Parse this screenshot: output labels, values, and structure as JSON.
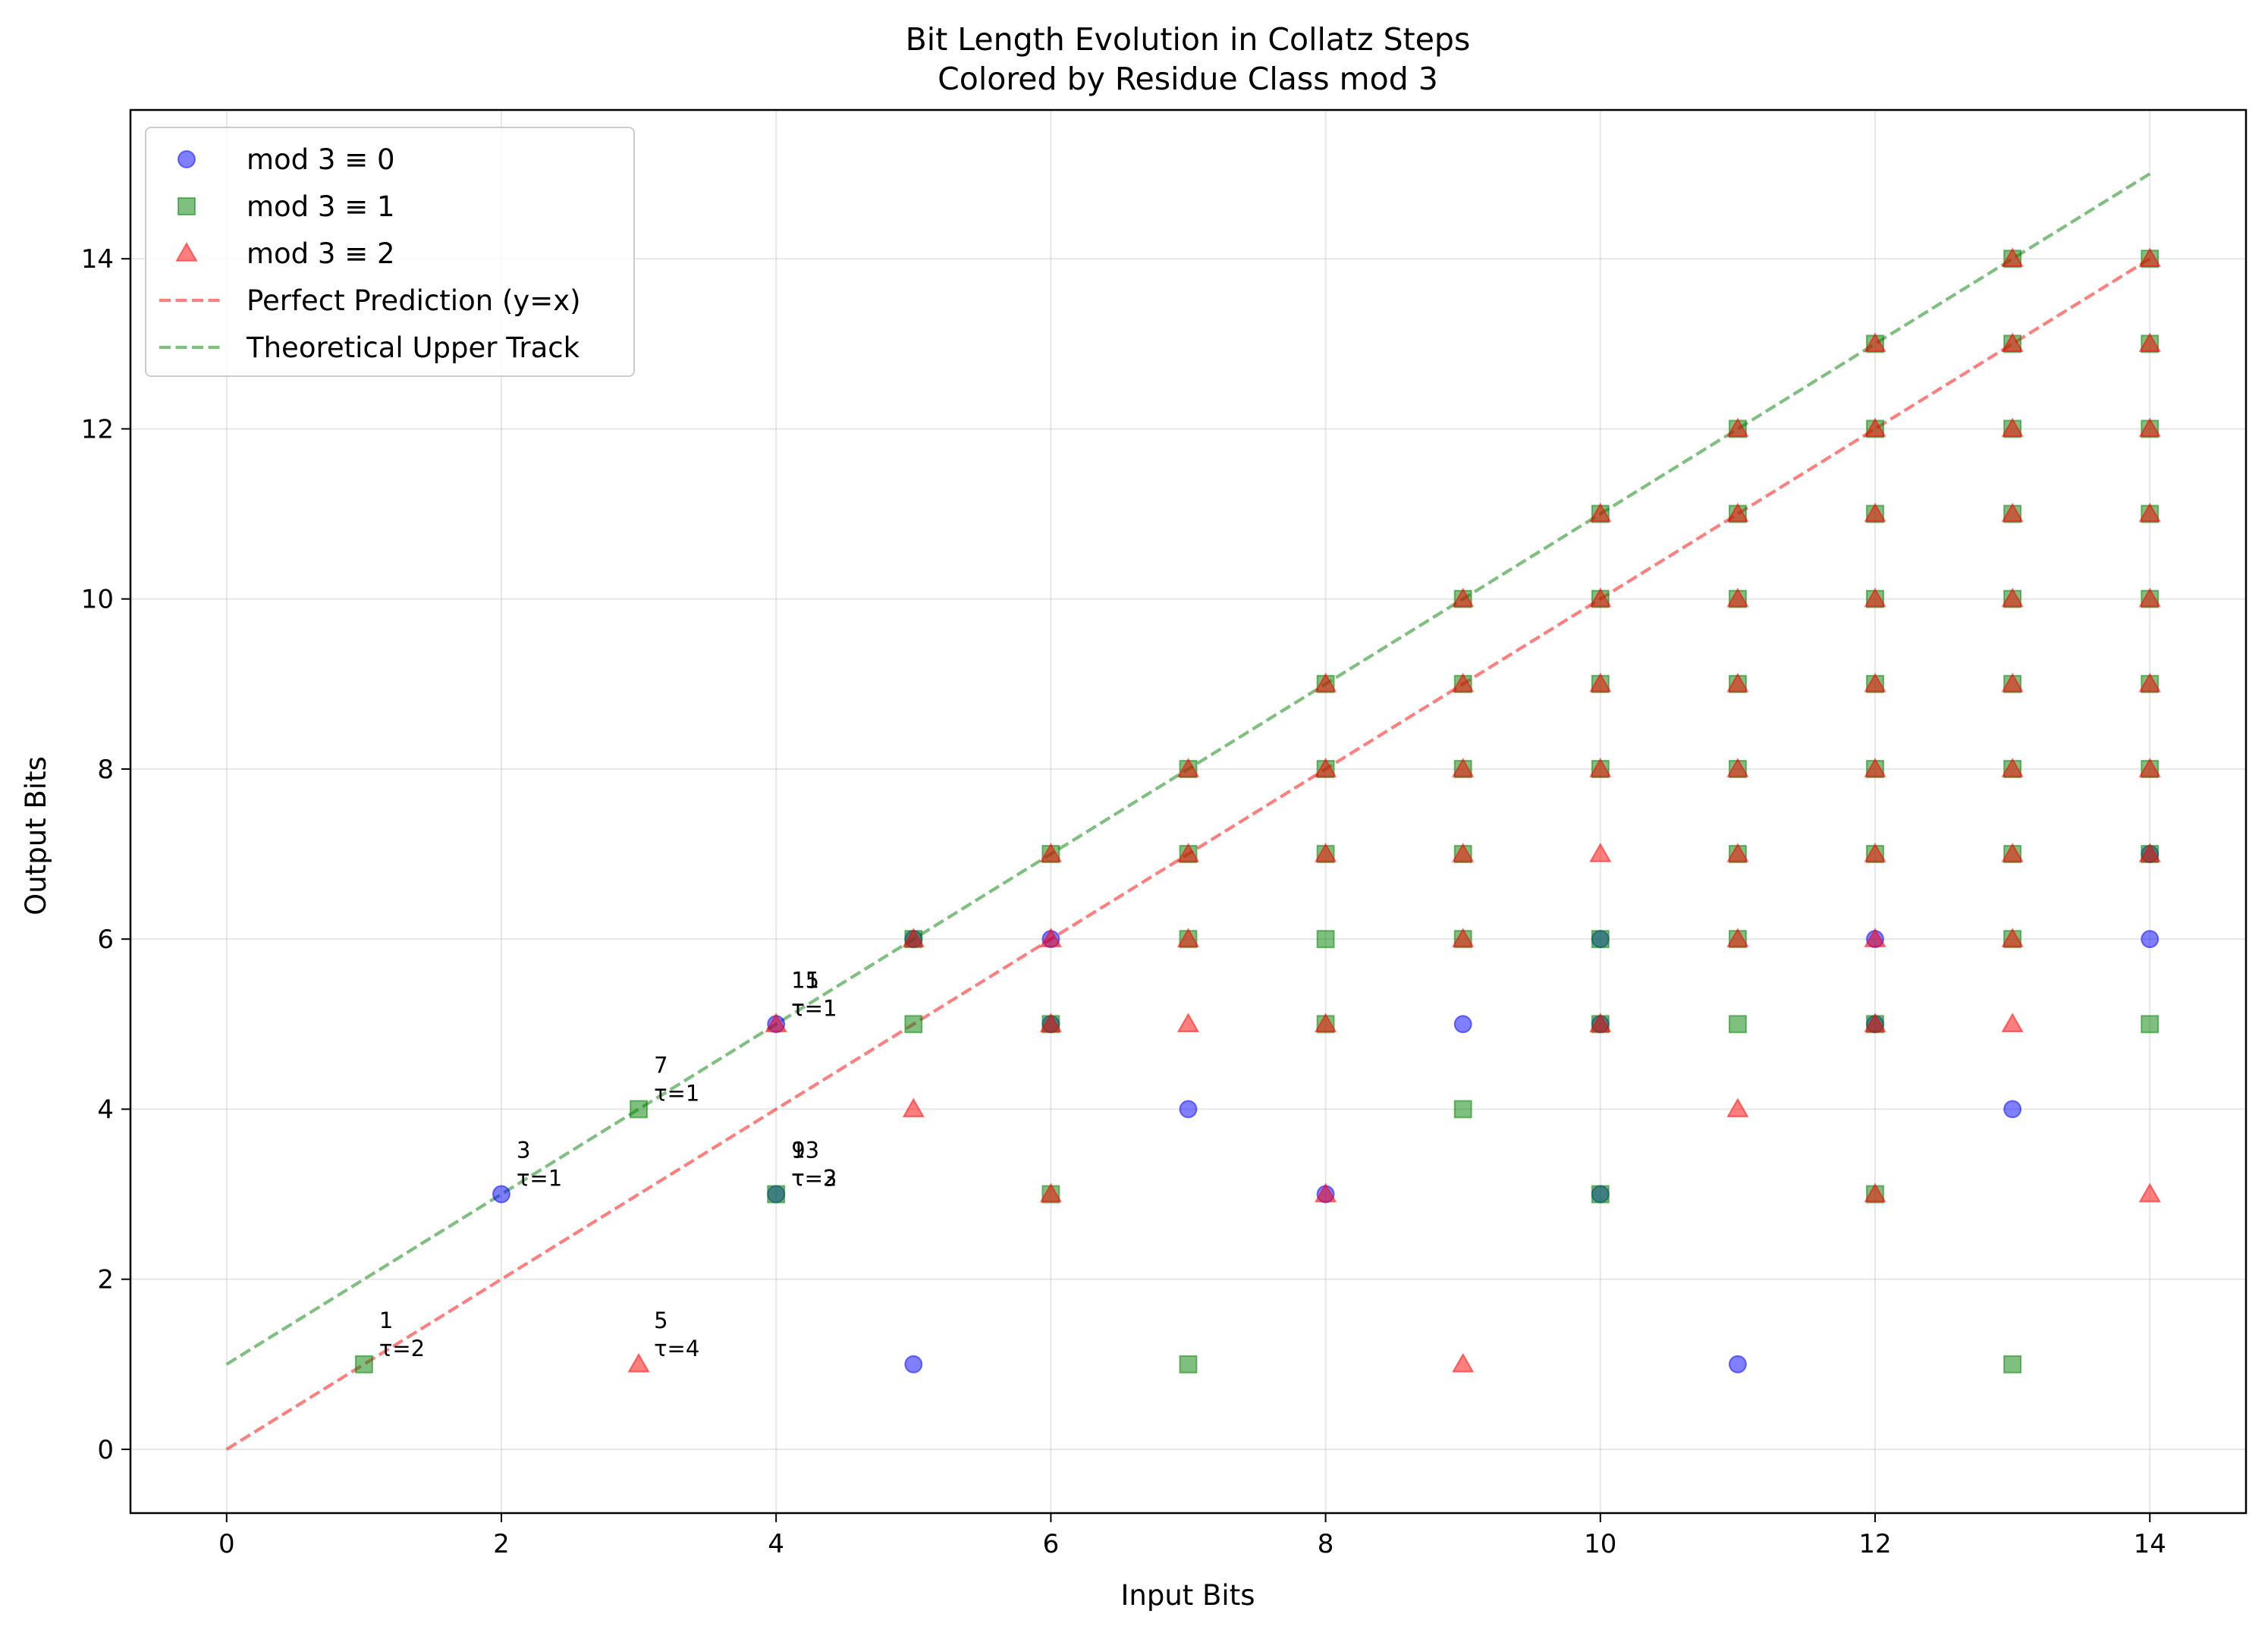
{
  "chart_data": {
    "type": "scatter",
    "title": [
      "Bit Length Evolution in Collatz Steps",
      "Colored by Residue Class mod 3"
    ],
    "xlabel": "Input Bits",
    "ylabel": "Output Bits",
    "xlim": [
      -0.7,
      14.7
    ],
    "ylim": [
      -0.75,
      15.75
    ],
    "xticks": [
      0,
      2,
      4,
      6,
      8,
      10,
      12,
      14
    ],
    "yticks": [
      0,
      2,
      4,
      6,
      8,
      10,
      12,
      14
    ],
    "grid": true,
    "legend_position": "top-left",
    "series": [
      {
        "name": "mod 3 ≡ 0",
        "marker": "circle",
        "color": "#0000ff",
        "alpha": 0.5,
        "points": [
          [
            2,
            3
          ],
          [
            4,
            5
          ],
          [
            4,
            3
          ],
          [
            5,
            6
          ],
          [
            5,
            1
          ],
          [
            6,
            6
          ],
          [
            6,
            5
          ],
          [
            7,
            4
          ],
          [
            8,
            3
          ],
          [
            9,
            5
          ],
          [
            10,
            6
          ],
          [
            10,
            5
          ],
          [
            10,
            3
          ],
          [
            11,
            1
          ],
          [
            12,
            6
          ],
          [
            12,
            5
          ],
          [
            13,
            4
          ],
          [
            14,
            7
          ],
          [
            14,
            6
          ]
        ]
      },
      {
        "name": "mod 3 ≡ 1",
        "marker": "square",
        "color": "#008000",
        "alpha": 0.5,
        "points": [
          [
            1,
            1
          ],
          [
            3,
            4
          ],
          [
            4,
            3
          ],
          [
            5,
            6
          ],
          [
            5,
            5
          ],
          [
            6,
            7
          ],
          [
            6,
            5
          ],
          [
            6,
            3
          ],
          [
            7,
            8
          ],
          [
            7,
            7
          ],
          [
            7,
            6
          ],
          [
            7,
            1
          ],
          [
            8,
            9
          ],
          [
            8,
            8
          ],
          [
            8,
            7
          ],
          [
            8,
            6
          ],
          [
            8,
            5
          ],
          [
            9,
            10
          ],
          [
            9,
            9
          ],
          [
            9,
            8
          ],
          [
            9,
            7
          ],
          [
            9,
            6
          ],
          [
            9,
            4
          ],
          [
            10,
            11
          ],
          [
            10,
            10
          ],
          [
            10,
            9
          ],
          [
            10,
            8
          ],
          [
            10,
            6
          ],
          [
            10,
            5
          ],
          [
            10,
            3
          ],
          [
            11,
            12
          ],
          [
            11,
            11
          ],
          [
            11,
            10
          ],
          [
            11,
            9
          ],
          [
            11,
            8
          ],
          [
            11,
            7
          ],
          [
            11,
            6
          ],
          [
            11,
            5
          ],
          [
            12,
            13
          ],
          [
            12,
            12
          ],
          [
            12,
            11
          ],
          [
            12,
            10
          ],
          [
            12,
            9
          ],
          [
            12,
            8
          ],
          [
            12,
            7
          ],
          [
            12,
            5
          ],
          [
            12,
            3
          ],
          [
            13,
            14
          ],
          [
            13,
            13
          ],
          [
            13,
            12
          ],
          [
            13,
            11
          ],
          [
            13,
            10
          ],
          [
            13,
            9
          ],
          [
            13,
            8
          ],
          [
            13,
            7
          ],
          [
            13,
            6
          ],
          [
            13,
            1
          ],
          [
            14,
            14
          ],
          [
            14,
            13
          ],
          [
            14,
            12
          ],
          [
            14,
            11
          ],
          [
            14,
            10
          ],
          [
            14,
            9
          ],
          [
            14,
            8
          ],
          [
            14,
            7
          ],
          [
            14,
            5
          ]
        ]
      },
      {
        "name": "mod 3 ≡ 2",
        "marker": "triangle",
        "color": "#ff0000",
        "alpha": 0.5,
        "points": [
          [
            3,
            1
          ],
          [
            4,
            5
          ],
          [
            5,
            6
          ],
          [
            5,
            4
          ],
          [
            6,
            7
          ],
          [
            6,
            6
          ],
          [
            6,
            5
          ],
          [
            6,
            3
          ],
          [
            7,
            8
          ],
          [
            7,
            7
          ],
          [
            7,
            6
          ],
          [
            7,
            5
          ],
          [
            8,
            9
          ],
          [
            8,
            8
          ],
          [
            8,
            7
          ],
          [
            8,
            5
          ],
          [
            8,
            3
          ],
          [
            9,
            10
          ],
          [
            9,
            9
          ],
          [
            9,
            8
          ],
          [
            9,
            7
          ],
          [
            9,
            6
          ],
          [
            9,
            1
          ],
          [
            10,
            11
          ],
          [
            10,
            10
          ],
          [
            10,
            9
          ],
          [
            10,
            8
          ],
          [
            10,
            7
          ],
          [
            10,
            5
          ],
          [
            11,
            12
          ],
          [
            11,
            11
          ],
          [
            11,
            10
          ],
          [
            11,
            9
          ],
          [
            11,
            8
          ],
          [
            11,
            7
          ],
          [
            11,
            6
          ],
          [
            11,
            4
          ],
          [
            12,
            13
          ],
          [
            12,
            12
          ],
          [
            12,
            11
          ],
          [
            12,
            10
          ],
          [
            12,
            9
          ],
          [
            12,
            8
          ],
          [
            12,
            7
          ],
          [
            12,
            6
          ],
          [
            12,
            5
          ],
          [
            12,
            3
          ],
          [
            13,
            14
          ],
          [
            13,
            13
          ],
          [
            13,
            12
          ],
          [
            13,
            11
          ],
          [
            13,
            10
          ],
          [
            13,
            9
          ],
          [
            13,
            8
          ],
          [
            13,
            7
          ],
          [
            13,
            6
          ],
          [
            13,
            5
          ],
          [
            14,
            14
          ],
          [
            14,
            13
          ],
          [
            14,
            12
          ],
          [
            14,
            11
          ],
          [
            14,
            10
          ],
          [
            14,
            9
          ],
          [
            14,
            8
          ],
          [
            14,
            7
          ],
          [
            14,
            3
          ]
        ]
      }
    ],
    "lines": [
      {
        "name": "Perfect Prediction (y=x)",
        "color": "#ff0000",
        "alpha": 0.5,
        "dash": true,
        "x": [
          0,
          14
        ],
        "y": [
          0,
          14
        ]
      },
      {
        "name": "Theoretical Upper Track",
        "color": "#008000",
        "alpha": 0.5,
        "dash": true,
        "x": [
          0,
          14
        ],
        "y": [
          1,
          15
        ]
      }
    ],
    "annotations": [
      {
        "x": 1,
        "y": 1,
        "lines": [
          "1",
          "τ=2"
        ]
      },
      {
        "x": 2,
        "y": 3,
        "lines": [
          "3",
          "τ=1"
        ]
      },
      {
        "x": 3,
        "y": 4,
        "lines": [
          "7",
          "τ=1"
        ]
      },
      {
        "x": 3,
        "y": 1,
        "lines": [
          "5",
          "τ=4"
        ]
      },
      {
        "x": 4,
        "y": 5,
        "lines": [
          "11",
          "τ=1"
        ]
      },
      {
        "x": 4,
        "y": 5,
        "lines": [
          "15",
          "τ=1"
        ]
      },
      {
        "x": 4,
        "y": 3,
        "lines": [
          "9",
          "τ=2"
        ]
      },
      {
        "x": 4,
        "y": 3,
        "lines": [
          "13",
          "τ=3"
        ]
      }
    ]
  }
}
